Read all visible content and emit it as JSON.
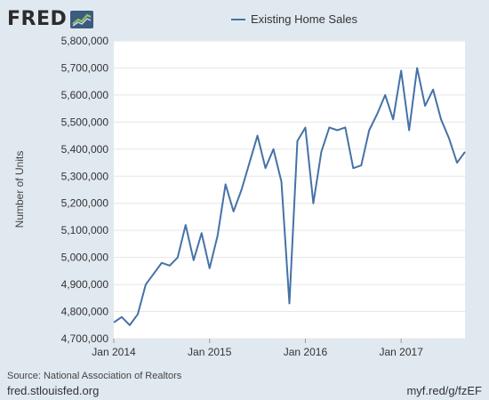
{
  "brand": {
    "name": "FRED"
  },
  "footer": {
    "source": "Source: National Association of Realtors",
    "site": "fred.stlouisfed.org",
    "short_url": "myf.red/g/fzEF"
  },
  "chart_data": {
    "type": "line",
    "ylabel": "Number of Units",
    "ylim": [
      4700000,
      5800000
    ],
    "yticks": [
      4700000,
      4800000,
      4900000,
      5000000,
      5100000,
      5200000,
      5300000,
      5400000,
      5500000,
      5600000,
      5700000,
      5800000
    ],
    "ytick_labels": [
      "4,700,000",
      "4,800,000",
      "4,900,000",
      "5,000,000",
      "5,100,000",
      "5,200,000",
      "5,300,000",
      "5,400,000",
      "5,500,000",
      "5,600,000",
      "5,700,000",
      "5,800,000"
    ],
    "xticks": [
      "Jan 2014",
      "Jan 2015",
      "Jan 2016",
      "Jan 2017"
    ],
    "xlim": [
      "2014-01",
      "2017-09"
    ],
    "grid": true,
    "legend": "top-center",
    "series": [
      {
        "name": "Existing Home Sales",
        "color": "#4572a7",
        "x": [
          "2014-01",
          "2014-02",
          "2014-03",
          "2014-04",
          "2014-05",
          "2014-06",
          "2014-07",
          "2014-08",
          "2014-09",
          "2014-10",
          "2014-11",
          "2014-12",
          "2015-01",
          "2015-02",
          "2015-03",
          "2015-04",
          "2015-05",
          "2015-06",
          "2015-07",
          "2015-08",
          "2015-09",
          "2015-10",
          "2015-11",
          "2015-12",
          "2016-01",
          "2016-02",
          "2016-03",
          "2016-04",
          "2016-05",
          "2016-06",
          "2016-07",
          "2016-08",
          "2016-09",
          "2016-10",
          "2016-11",
          "2016-12",
          "2017-01",
          "2017-02",
          "2017-03",
          "2017-04",
          "2017-05",
          "2017-06",
          "2017-07",
          "2017-08",
          "2017-09"
        ],
        "values": [
          4760000,
          4780000,
          4750000,
          4790000,
          4900000,
          4940000,
          4980000,
          4970000,
          5000000,
          5120000,
          4990000,
          5090000,
          4960000,
          5080000,
          5270000,
          5170000,
          5250000,
          5350000,
          5450000,
          5330000,
          5400000,
          5280000,
          4830000,
          5430000,
          5480000,
          5200000,
          5390000,
          5480000,
          5470000,
          5480000,
          5330000,
          5340000,
          5470000,
          5530000,
          5600000,
          5510000,
          5690000,
          5470000,
          5700000,
          5560000,
          5620000,
          5510000,
          5440000,
          5350000,
          5390000
        ]
      }
    ]
  }
}
